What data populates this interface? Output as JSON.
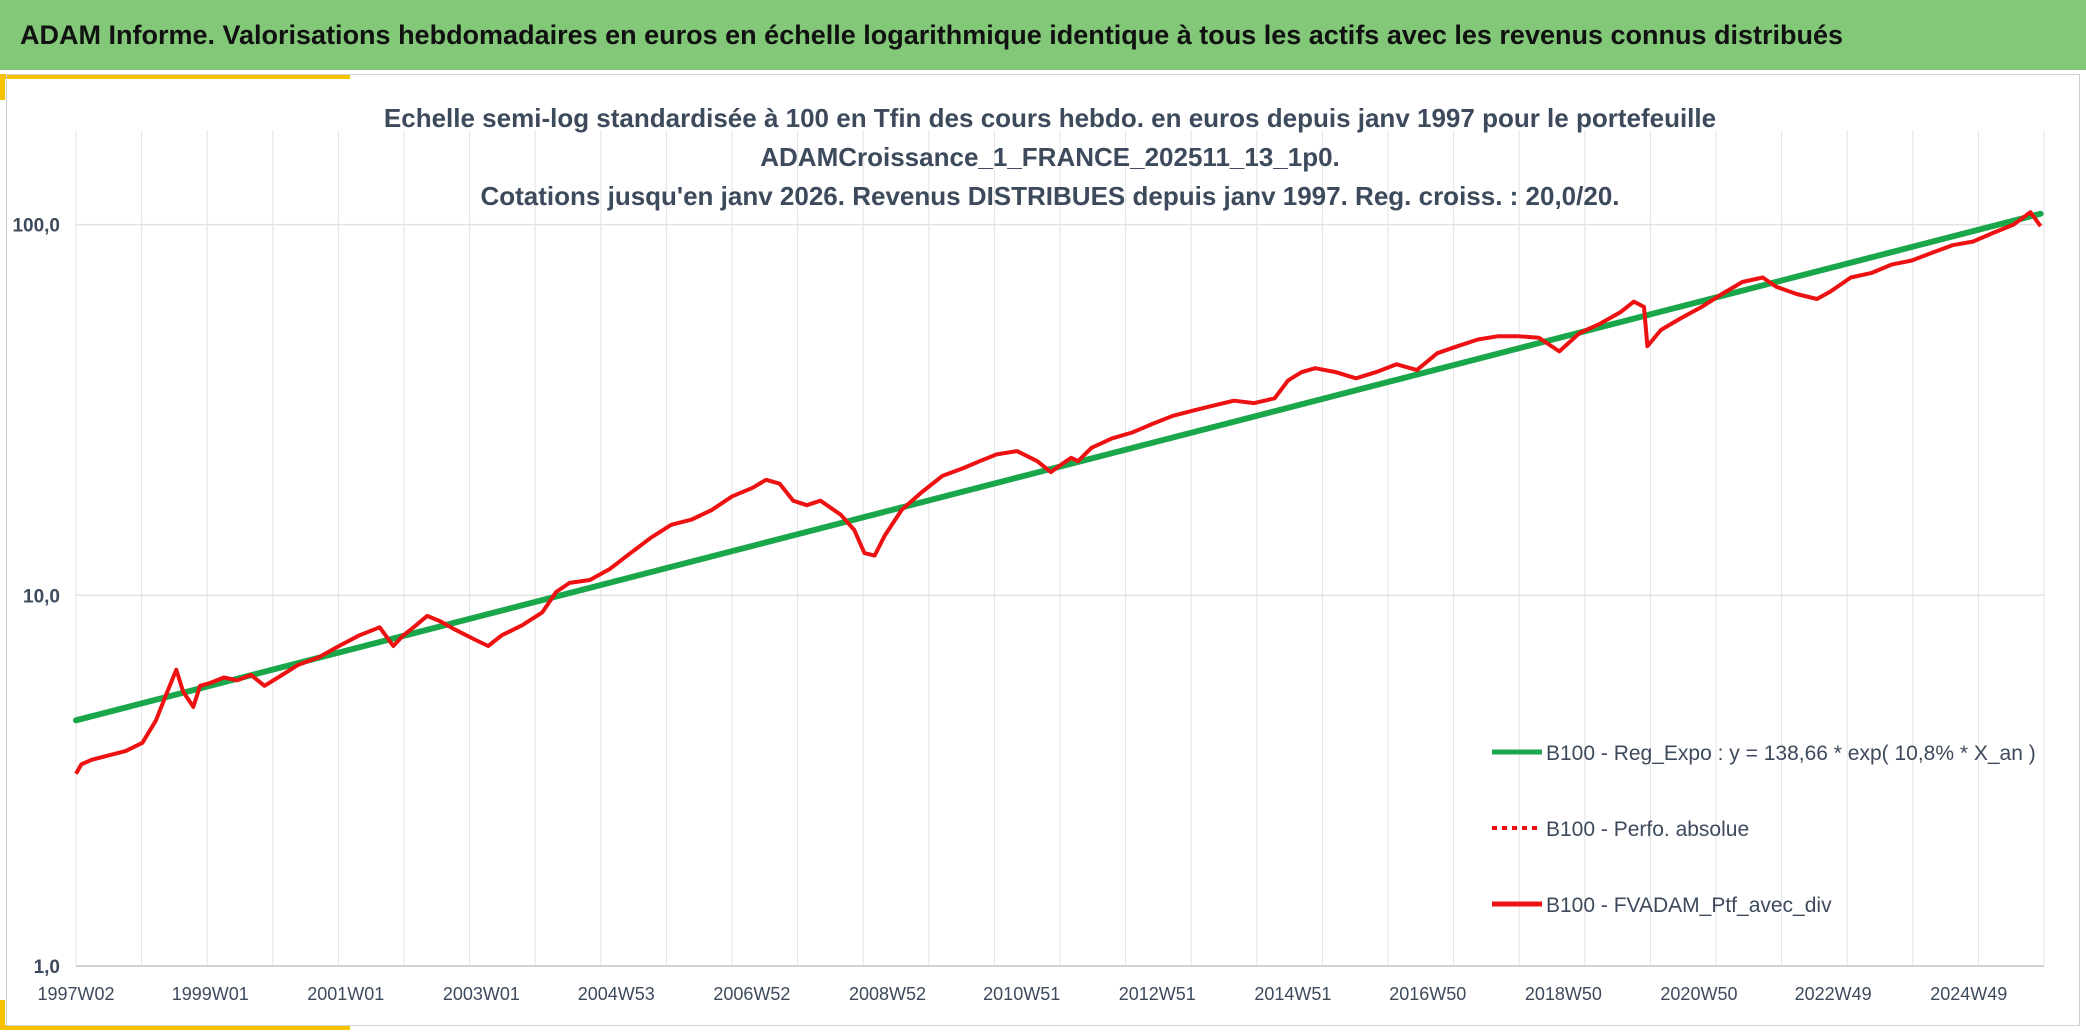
{
  "banner": {
    "title": "ADAM Informe. Valorisations hebdomadaires en euros en échelle logarithmique identique à tous les actifs avec les revenus connus distribués"
  },
  "colors": {
    "banner": "#82c878",
    "accent": "#f5c200",
    "regression": "#1aa64a",
    "portfolio": "#ee1111",
    "grid": "#e3e3e3",
    "text": "#3d4a5c"
  },
  "chart_data": {
    "type": "line",
    "title_lines": [
      "Echelle semi-log standardisée à 100 en Tfin des cours hebdo. en euros depuis janv 1997 pour le portefeuille",
      "ADAMCroissance_1_FRANCE_202511_13_1p0.",
      "Cotations jusqu'en janv 2026. Revenus DISTRIBUES depuis janv 1997. Reg. croiss. : 20,0/20."
    ],
    "y_scale": "log",
    "ylim": [
      1,
      180
    ],
    "y_ticks": [
      {
        "value": 1,
        "label": "1,0"
      },
      {
        "value": 10,
        "label": "10,0"
      },
      {
        "value": 100,
        "label": "100,0"
      }
    ],
    "xlim": [
      1997.02,
      2026.05
    ],
    "x_ticks": [
      {
        "value": 1997.02,
        "label": "1997W02"
      },
      {
        "value": 1999.0,
        "label": "1999W01"
      },
      {
        "value": 2001.0,
        "label": "2001W01"
      },
      {
        "value": 2003.0,
        "label": "2003W01"
      },
      {
        "value": 2004.99,
        "label": "2004W53"
      },
      {
        "value": 2006.99,
        "label": "2006W52"
      },
      {
        "value": 2008.99,
        "label": "2008W52"
      },
      {
        "value": 2010.97,
        "label": "2010W51"
      },
      {
        "value": 2012.97,
        "label": "2012W51"
      },
      {
        "value": 2014.97,
        "label": "2014W51"
      },
      {
        "value": 2016.96,
        "label": "2016W50"
      },
      {
        "value": 2018.96,
        "label": "2018W50"
      },
      {
        "value": 2020.96,
        "label": "2020W50"
      },
      {
        "value": 2022.94,
        "label": "2022W49"
      },
      {
        "value": 2024.94,
        "label": "2024W49"
      }
    ],
    "vertical_grid": true,
    "legend_position": "bottom-right",
    "series": [
      {
        "name": "B100 - Reg_Expo : y = 138,66 * exp( 10,8% *  X_an )",
        "style": "solid",
        "color": "#1aa64a",
        "x": [
          1997.02,
          2026.0
        ],
        "y": [
          4.6,
          107
        ]
      },
      {
        "name": "B100 - Perfo. absolue",
        "style": "dotted",
        "color": "#ee1111",
        "x": [],
        "y": []
      },
      {
        "name": "B100 - FVADAM_Ptf_avec_div",
        "style": "solid",
        "color": "#ee1111",
        "x": [
          1997.02,
          1997.1,
          1997.25,
          1997.5,
          1997.75,
          1998.0,
          1998.2,
          1998.35,
          1998.5,
          1998.6,
          1998.75,
          1998.85,
          1999.0,
          1999.2,
          1999.4,
          1999.6,
          1999.8,
          2000.0,
          2000.3,
          2000.6,
          2000.9,
          2001.2,
          2001.5,
          2001.7,
          2001.85,
          2002.0,
          2002.2,
          2002.4,
          2002.6,
          2002.9,
          2003.1,
          2003.3,
          2003.6,
          2003.9,
          2004.1,
          2004.3,
          2004.6,
          2004.9,
          2005.2,
          2005.5,
          2005.8,
          2006.1,
          2006.4,
          2006.7,
          2007.0,
          2007.2,
          2007.4,
          2007.6,
          2007.8,
          2008.0,
          2008.3,
          2008.5,
          2008.65,
          2008.8,
          2008.95,
          2009.2,
          2009.5,
          2009.8,
          2010.1,
          2010.35,
          2010.6,
          2010.9,
          2011.2,
          2011.4,
          2011.55,
          2011.7,
          2011.8,
          2012.0,
          2012.3,
          2012.6,
          2012.9,
          2013.2,
          2013.5,
          2013.8,
          2014.1,
          2014.4,
          2014.7,
          2014.9,
          2015.1,
          2015.3,
          2015.6,
          2015.9,
          2016.2,
          2016.5,
          2016.8,
          2017.1,
          2017.4,
          2017.7,
          2018.0,
          2018.3,
          2018.6,
          2018.9,
          2019.2,
          2019.5,
          2019.8,
          2020.0,
          2020.15,
          2020.2,
          2020.4,
          2020.7,
          2021.0,
          2021.3,
          2021.6,
          2021.9,
          2022.1,
          2022.4,
          2022.7,
          2022.9,
          2023.2,
          2023.5,
          2023.8,
          2024.1,
          2024.4,
          2024.7,
          2025.0,
          2025.3,
          2025.6,
          2025.85,
          2026.0
        ],
        "y": [
          3.3,
          3.5,
          3.6,
          3.7,
          3.8,
          4.0,
          4.6,
          5.4,
          6.3,
          5.5,
          5.0,
          5.7,
          5.8,
          6.0,
          5.9,
          6.1,
          5.7,
          6.0,
          6.5,
          6.8,
          7.3,
          7.8,
          8.2,
          7.3,
          7.8,
          8.2,
          8.8,
          8.5,
          8.1,
          7.6,
          7.3,
          7.8,
          8.3,
          9.0,
          10.2,
          10.8,
          11.0,
          11.8,
          13.0,
          14.3,
          15.5,
          16.0,
          17.0,
          18.5,
          19.5,
          20.5,
          20.0,
          18.0,
          17.5,
          18.0,
          16.5,
          15.0,
          13.0,
          12.8,
          14.5,
          17.0,
          19.0,
          21.0,
          22.0,
          23.0,
          24.0,
          24.5,
          23.0,
          21.5,
          22.5,
          23.5,
          23.0,
          25.0,
          26.5,
          27.5,
          29.0,
          30.5,
          31.5,
          32.5,
          33.5,
          33.0,
          34.0,
          38.0,
          40.0,
          41.0,
          40.0,
          38.5,
          40.0,
          42.0,
          40.5,
          45.0,
          47.0,
          49.0,
          50.0,
          50.0,
          49.5,
          45.5,
          51.0,
          54.0,
          58.0,
          62.0,
          60.0,
          47.0,
          52.0,
          56.0,
          60.0,
          65.0,
          70.0,
          72.0,
          68.0,
          65.0,
          63.0,
          66.0,
          72.0,
          74.0,
          78.0,
          80.0,
          84.0,
          88.0,
          90.0,
          95.0,
          100.0,
          108.0,
          99.0
        ]
      }
    ]
  }
}
